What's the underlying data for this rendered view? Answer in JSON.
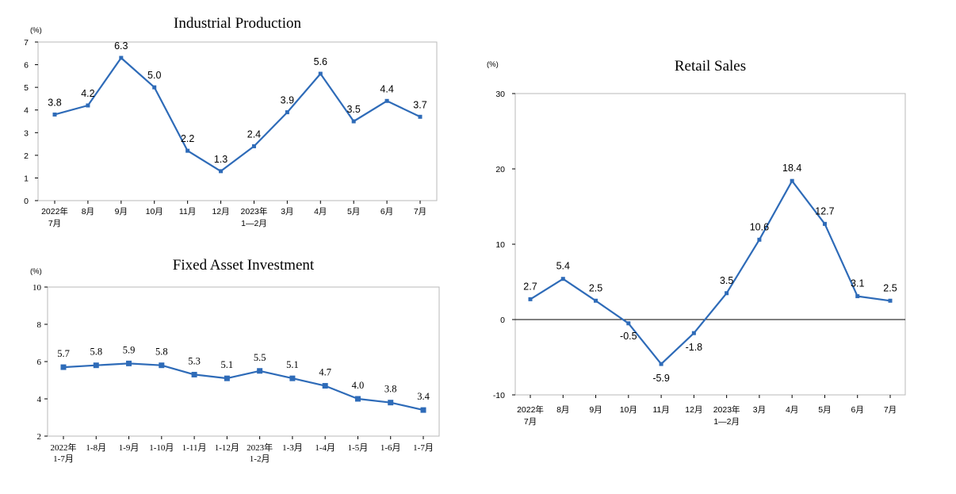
{
  "colors": {
    "series": "#2E6BB8",
    "frame": "#B8B8B8",
    "axis": "#000000"
  },
  "chart_data": [
    {
      "type": "line",
      "title": "Industrial Production",
      "ylabel": "(%)",
      "ylim": [
        0,
        7
      ],
      "yticks": [
        "0",
        "1",
        "2",
        "3",
        "4",
        "5",
        "6",
        "7"
      ],
      "categories": [
        [
          "2022年",
          "7月"
        ],
        [
          "8月"
        ],
        [
          "9月"
        ],
        [
          "10月"
        ],
        [
          "11月"
        ],
        [
          "12月"
        ],
        [
          "2023年",
          "1—2月"
        ],
        [
          "3月"
        ],
        [
          "4月"
        ],
        [
          "5月"
        ],
        [
          "6月"
        ],
        [
          "7月"
        ]
      ],
      "values": [
        3.8,
        4.2,
        6.3,
        5.0,
        2.2,
        1.3,
        2.4,
        3.9,
        5.6,
        3.5,
        4.4,
        3.7
      ],
      "labels": [
        "3.8",
        "4.2",
        "6.3",
        "5.0",
        "2.2",
        "1.3",
        "2.4",
        "3.9",
        "5.6",
        "3.5",
        "4.4",
        "3.7"
      ]
    },
    {
      "type": "line",
      "title": "Fixed Asset Investment",
      "ylabel": "(%)",
      "ylim": [
        2,
        10
      ],
      "yticks": [
        "2",
        "4",
        "6",
        "8",
        "10"
      ],
      "categories": [
        [
          "2022年",
          "1-7月"
        ],
        [
          "1-8月"
        ],
        [
          "1-9月"
        ],
        [
          "1-10月"
        ],
        [
          "1-11月"
        ],
        [
          "1-12月"
        ],
        [
          "2023年",
          "1-2月"
        ],
        [
          "1-3月"
        ],
        [
          "1-4月"
        ],
        [
          "1-5月"
        ],
        [
          "1-6月"
        ],
        [
          "1-7月"
        ]
      ],
      "values": [
        5.7,
        5.8,
        5.9,
        5.8,
        5.3,
        5.1,
        5.5,
        5.1,
        4.7,
        4.0,
        3.8,
        3.4
      ],
      "labels": [
        "5.7",
        "5.8",
        "5.9",
        "5.8",
        "5.3",
        "5.1",
        "5.5",
        "5.1",
        "4.7",
        "4.0",
        "3.8",
        "3.4"
      ]
    },
    {
      "type": "line",
      "title": "Retail Sales",
      "ylabel": "(%)",
      "ylim": [
        -10,
        30
      ],
      "yticks": [
        "-10",
        "0",
        "10",
        "20",
        "30"
      ],
      "categories": [
        [
          "2022年",
          "7月"
        ],
        [
          "8月"
        ],
        [
          "9月"
        ],
        [
          "10月"
        ],
        [
          "11月"
        ],
        [
          "12月"
        ],
        [
          "2023年",
          "1—2月"
        ],
        [
          "3月"
        ],
        [
          "4月"
        ],
        [
          "5月"
        ],
        [
          "6月"
        ],
        [
          "7月"
        ]
      ],
      "values": [
        2.7,
        5.4,
        2.5,
        -0.5,
        -5.9,
        -1.8,
        3.5,
        10.6,
        18.4,
        12.7,
        3.1,
        2.5
      ],
      "labels": [
        "2.7",
        "5.4",
        "2.5",
        "-0.5",
        "-5.9",
        "-1.8",
        "3.5",
        "10.6",
        "18.4",
        "12.7",
        "3.1",
        "2.5"
      ]
    }
  ]
}
